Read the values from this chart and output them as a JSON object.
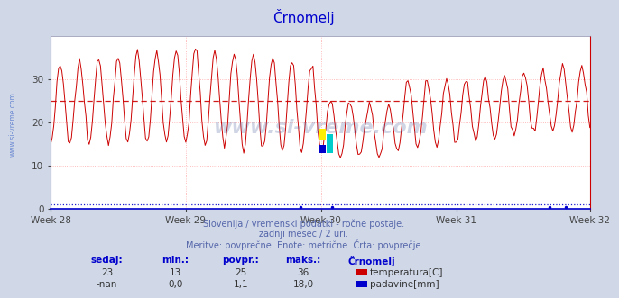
{
  "title": "Črnomelj",
  "background_color": "#d0d8e8",
  "plot_bg_color": "#ffffff",
  "grid_color": "#ffaaaa",
  "x_labels": [
    "Week 28",
    "Week 29",
    "Week 30",
    "Week 31",
    "Week 32"
  ],
  "n_points": 336,
  "ylim": [
    0,
    40
  ],
  "yticks": [
    0,
    10,
    20,
    30
  ],
  "temp_color": "#cc0000",
  "precip_color": "#0000cc",
  "avg_temp_value": 25,
  "avg_precip_value": 1.1,
  "title_color": "#0000cc",
  "subtitle_color": "#5566aa",
  "legend_label_color": "#0000cc",
  "watermark_color": "#6677aa",
  "left_label_color": "#5577cc",
  "subtitle_line1": "Slovenija / vremenski podatki - ročne postaje.",
  "subtitle_line2": "zadnji mesec / 2 uri.",
  "subtitle_line3": "Meritve: povprečne  Enote: metrične  Črta: povprečje",
  "footer_headers": [
    "sedaj:",
    "min.:",
    "povpr.:",
    "maks.:",
    "Črnomelj"
  ],
  "footer_row1": [
    "23",
    "13",
    "25",
    "36",
    "temperatura[C]"
  ],
  "footer_row2": [
    "-nan",
    "0,0",
    "1,1",
    "18,0",
    "padavine[mm]"
  ],
  "temp_color_box": "#cc0000",
  "precip_color_box": "#0000cc"
}
